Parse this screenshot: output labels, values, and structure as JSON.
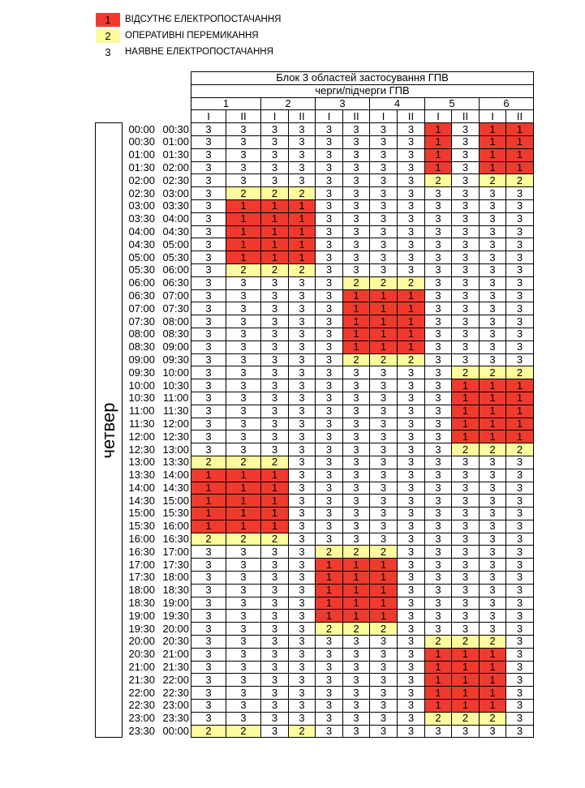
{
  "legend": [
    {
      "code": "1",
      "label": "ВІДСУТНЄ ЕЛЕКТРОПОСТАЧАННЯ",
      "color": "#f03a2e"
    },
    {
      "code": "2",
      "label": "ОПЕРАТИВНІ ПЕРЕМИКАННЯ",
      "color": "#fdfb9d"
    },
    {
      "code": "3",
      "label": "НАЯВНЕ ЕЛЕКТРОПОСТАЧАННЯ",
      "color": "#ffffff"
    }
  ],
  "table": {
    "title": "Блок 3 областей застосування ГПВ",
    "subtitle": "черги/підчерги ГПВ",
    "groups": [
      "1",
      "2",
      "3",
      "4",
      "5",
      "6"
    ],
    "subgroups": [
      "I",
      "II",
      "I",
      "II",
      "I",
      "II",
      "I",
      "II",
      "I",
      "II",
      "I",
      "II"
    ],
    "day": "четвер",
    "rows": [
      {
        "from": "00:00",
        "to": "00:30",
        "v": "333333331311"
      },
      {
        "from": "00:30",
        "to": "01:00",
        "v": "333333331311"
      },
      {
        "from": "01:00",
        "to": "01:30",
        "v": "333333331311"
      },
      {
        "from": "01:30",
        "to": "02:00",
        "v": "333333331311"
      },
      {
        "from": "02:00",
        "to": "02:30",
        "v": "333333332322"
      },
      {
        "from": "02:30",
        "to": "03:00",
        "v": "322233333333"
      },
      {
        "from": "03:00",
        "to": "03:30",
        "v": "311133333333"
      },
      {
        "from": "03:30",
        "to": "04:00",
        "v": "311133333333"
      },
      {
        "from": "04:00",
        "to": "04:30",
        "v": "311133333333"
      },
      {
        "from": "04:30",
        "to": "05:00",
        "v": "311133333333"
      },
      {
        "from": "05:00",
        "to": "05:30",
        "v": "311133333333"
      },
      {
        "from": "05:30",
        "to": "06:00",
        "v": "322233333333"
      },
      {
        "from": "06:00",
        "to": "06:30",
        "v": "333332223333"
      },
      {
        "from": "06:30",
        "to": "07:00",
        "v": "333331113333"
      },
      {
        "from": "07:00",
        "to": "07:30",
        "v": "333331113333"
      },
      {
        "from": "07:30",
        "to": "08:00",
        "v": "333331113333"
      },
      {
        "from": "08:00",
        "to": "08:30",
        "v": "333331113333"
      },
      {
        "from": "08:30",
        "to": "09:00",
        "v": "333331113333"
      },
      {
        "from": "09:00",
        "to": "09:30",
        "v": "333332223333"
      },
      {
        "from": "09:30",
        "to": "10:00",
        "v": "333333333222"
      },
      {
        "from": "10:00",
        "to": "10:30",
        "v": "333333333111"
      },
      {
        "from": "10:30",
        "to": "11:00",
        "v": "333333333111"
      },
      {
        "from": "11:00",
        "to": "11:30",
        "v": "333333333111"
      },
      {
        "from": "11:30",
        "to": "12:00",
        "v": "333333333111"
      },
      {
        "from": "12:00",
        "to": "12:30",
        "v": "333333333111"
      },
      {
        "from": "12:30",
        "to": "13:00",
        "v": "333333333222"
      },
      {
        "from": "13:00",
        "to": "13:30",
        "v": "222333333333"
      },
      {
        "from": "13:30",
        "to": "14:00",
        "v": "111333333333"
      },
      {
        "from": "14:00",
        "to": "14:30",
        "v": "111333333333"
      },
      {
        "from": "14:30",
        "to": "15:00",
        "v": "111333333333"
      },
      {
        "from": "15:00",
        "to": "15:30",
        "v": "111333333333"
      },
      {
        "from": "15:30",
        "to": "16:00",
        "v": "111333333333"
      },
      {
        "from": "16:00",
        "to": "16:30",
        "v": "222333333333"
      },
      {
        "from": "16:30",
        "to": "17:00",
        "v": "333322233333"
      },
      {
        "from": "17:00",
        "to": "17:30",
        "v": "333311133333"
      },
      {
        "from": "17:30",
        "to": "18:00",
        "v": "333311133333"
      },
      {
        "from": "18:00",
        "to": "18:30",
        "v": "333311133333"
      },
      {
        "from": "18:30",
        "to": "19:00",
        "v": "333311133333"
      },
      {
        "from": "19:00",
        "to": "19:30",
        "v": "333311133333"
      },
      {
        "from": "19:30",
        "to": "20:00",
        "v": "333322233333"
      },
      {
        "from": "20:00",
        "to": "20:30",
        "v": "333333332223"
      },
      {
        "from": "20:30",
        "to": "21:00",
        "v": "333333331113"
      },
      {
        "from": "21:00",
        "to": "21:30",
        "v": "333333331113"
      },
      {
        "from": "21:30",
        "to": "22:00",
        "v": "333333331113"
      },
      {
        "from": "22:00",
        "to": "22:30",
        "v": "333333331113"
      },
      {
        "from": "22:30",
        "to": "23:00",
        "v": "333333331113"
      },
      {
        "from": "23:00",
        "to": "23:30",
        "v": "333333332223"
      },
      {
        "from": "23:30",
        "to": "00:00",
        "v": "223233333333"
      }
    ]
  }
}
